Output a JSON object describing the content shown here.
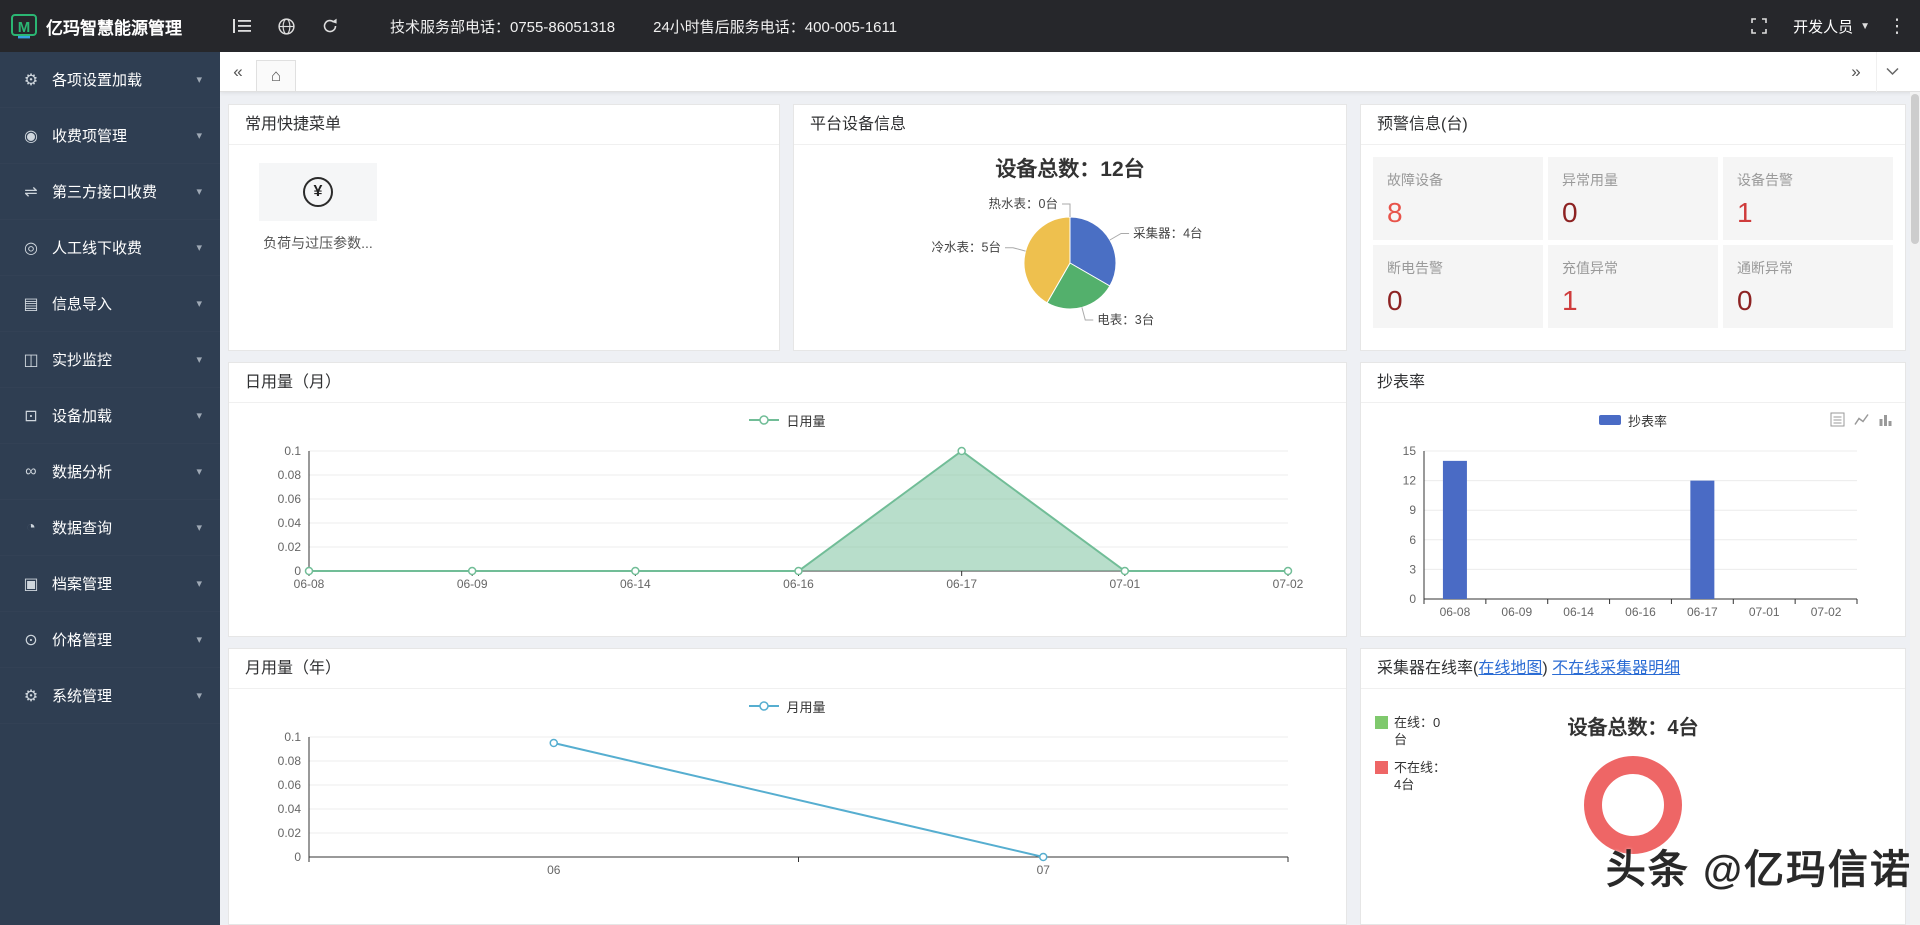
{
  "header": {
    "app_title": "亿玛智慧能源管理",
    "tech_phone": "技术服务部电话：0755-86051318",
    "service_phone": "24小时售后服务电话：400-005-1611",
    "user_menu": "开发人员"
  },
  "sidebar": {
    "items": [
      {
        "label": "各项设置加载",
        "icon": "settings-load-icon",
        "glyph": "⚙"
      },
      {
        "label": "收费项管理",
        "icon": "fee-management-icon",
        "glyph": "◉"
      },
      {
        "label": "第三方接口收费",
        "icon": "third-party-fee-icon",
        "glyph": "⇌"
      },
      {
        "label": "人工线下收费",
        "icon": "offline-fee-icon",
        "glyph": "◎"
      },
      {
        "label": "信息导入",
        "icon": "info-import-icon",
        "glyph": "▤"
      },
      {
        "label": "实抄监控",
        "icon": "meter-monitoring-icon",
        "glyph": "◫"
      },
      {
        "label": "设备加载",
        "icon": "device-load-icon",
        "glyph": "⊡"
      },
      {
        "label": "数据分析",
        "icon": "data-analysis-icon",
        "glyph": "∞"
      },
      {
        "label": "数据查询",
        "icon": "data-query-icon",
        "glyph": "◔"
      },
      {
        "label": "档案管理",
        "icon": "archive-management-icon",
        "glyph": "▣"
      },
      {
        "label": "价格管理",
        "icon": "price-management-icon",
        "glyph": "⊙"
      },
      {
        "label": "系统管理",
        "icon": "system-management-icon",
        "glyph": "⚙"
      }
    ]
  },
  "cards": {
    "shortcuts": {
      "title": "常用快捷菜单",
      "item_label": "负荷与过压参数...",
      "yen_glyph": "¥"
    },
    "device_info": {
      "title": "平台设备信息"
    },
    "alerts": {
      "title": "预警信息(台)",
      "items": [
        {
          "label": "故障设备",
          "value": "8",
          "color": "#e8534a"
        },
        {
          "label": "异常用量",
          "value": "0",
          "color": "#8d2222"
        },
        {
          "label": "设备告警",
          "value": "1",
          "color": "#cf3c3c"
        },
        {
          "label": "断电告警",
          "value": "0",
          "color": "#8d2222"
        },
        {
          "label": "充值异常",
          "value": "1",
          "color": "#cf3c3c"
        },
        {
          "label": "通断异常",
          "value": "0",
          "color": "#8d2222"
        }
      ]
    },
    "daily": {
      "title": "日用量（月）"
    },
    "reading_rate": {
      "title": "抄表率"
    },
    "monthly": {
      "title": "月用量（年）"
    },
    "collector": {
      "title_prefix": "采集器在线率(",
      "map_link": "在线地图",
      "title_suffix": ") ",
      "detail_link": "不在线采集器明细"
    }
  },
  "watermark": "头条 @亿玛信诺",
  "chart_data": [
    {
      "id": "device-pie",
      "type": "pie",
      "title": "设备总数：12台",
      "labels": [
        "采集器：4台",
        "电表：3台",
        "冷水表：5台",
        "热水表：0台"
      ],
      "values": [
        4,
        3,
        5,
        0
      ],
      "colors": [
        "#4a6fc4",
        "#53b06c",
        "#eec04e",
        "#b8c4cf"
      ]
    },
    {
      "id": "daily-usage",
      "type": "area",
      "legend": "日用量",
      "categories": [
        "06-08",
        "06-09",
        "06-14",
        "06-16",
        "06-17",
        "07-01",
        "07-02"
      ],
      "values": [
        0,
        0,
        0,
        0,
        0.1,
        0,
        0
      ],
      "yticks": [
        0,
        0.02,
        0.04,
        0.06,
        0.08,
        0.1
      ],
      "ylim": [
        0,
        0.1
      ],
      "color": "#71bd97"
    },
    {
      "id": "reading-rate",
      "type": "bar",
      "legend": "抄表率",
      "categories": [
        "06-08",
        "06-09",
        "06-14",
        "06-16",
        "06-17",
        "07-01",
        "07-02"
      ],
      "values": [
        14,
        0,
        0,
        0,
        12,
        0,
        0
      ],
      "yticks": [
        0,
        3,
        6,
        9,
        12,
        15
      ],
      "ylim": [
        0,
        15
      ],
      "color": "#4a6bc5"
    },
    {
      "id": "monthly-usage",
      "type": "line",
      "legend": "月用量",
      "categories": [
        "06",
        "07"
      ],
      "values": [
        0.095,
        0
      ],
      "yticks": [
        0,
        0.02,
        0.04,
        0.06,
        0.08,
        0.1
      ],
      "ylim": [
        0,
        0.1
      ],
      "color": "#56aed0"
    },
    {
      "id": "collector-online",
      "type": "donut",
      "labels": [
        "在线：0台",
        "不在线：4台"
      ],
      "values": [
        0,
        4
      ],
      "colors": [
        "#7fc96d",
        "#ee6666"
      ],
      "total_label": "设备总数：4台"
    }
  ]
}
